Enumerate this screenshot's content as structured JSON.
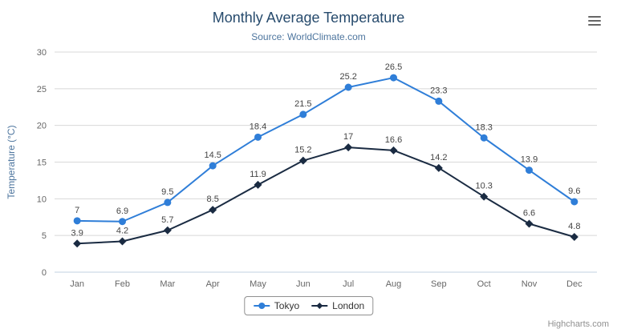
{
  "chart": {
    "title": "Monthly Average Temperature",
    "subtitle": "Source: WorldClimate.com",
    "credits": "Highcharts.com",
    "icons": {
      "context_menu": "hamburger-menu-icon"
    },
    "colors": {
      "tokyo": "#2f7ed8",
      "london": "#1a2b42",
      "grid": "#d8d8d8",
      "axis_line": "#c0d0e0",
      "title": "#274b6d",
      "subtitle": "#4d759e"
    }
  },
  "chart_data": {
    "type": "line",
    "title": "Monthly Average Temperature",
    "subtitle": "Source: WorldClimate.com",
    "categories": [
      "Jan",
      "Feb",
      "Mar",
      "Apr",
      "May",
      "Jun",
      "Jul",
      "Aug",
      "Sep",
      "Oct",
      "Nov",
      "Dec"
    ],
    "series": [
      {
        "name": "Tokyo",
        "color": "#2f7ed8",
        "marker": "circle",
        "values": [
          7,
          6.9,
          9.5,
          14.5,
          18.4,
          21.5,
          25.2,
          26.5,
          23.3,
          18.3,
          13.9,
          9.6
        ]
      },
      {
        "name": "London",
        "color": "#1a2b42",
        "marker": "diamond",
        "values": [
          3.9,
          4.2,
          5.7,
          8.5,
          11.9,
          15.2,
          17,
          16.6,
          14.2,
          10.3,
          6.6,
          4.8
        ]
      }
    ],
    "xlabel": "",
    "ylabel": "Temperature (°C)",
    "ylim": [
      0,
      30
    ],
    "ytick_interval": 5,
    "grid": true,
    "legend_position": "bottom",
    "data_labels": true
  }
}
